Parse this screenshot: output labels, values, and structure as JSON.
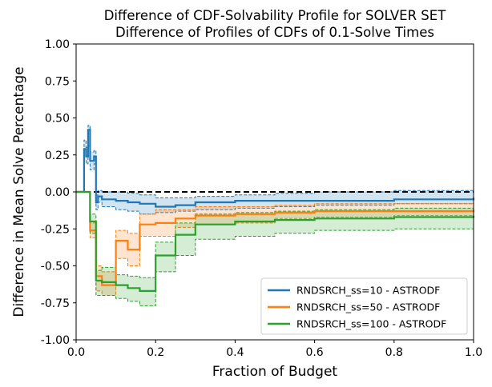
{
  "chart_data": {
    "type": "line",
    "title": "Difference of CDF-Solvability Profile for SOLVER SET",
    "subtitle": "Difference of Profiles of CDFs of 0.1-Solve Times",
    "xlabel": "Fraction of Budget",
    "ylabel": "Difference in Mean Solve Percentage",
    "xlim": [
      0,
      1
    ],
    "ylim": [
      -1,
      1
    ],
    "xticks": [
      "0.0",
      "0.2",
      "0.4",
      "0.6",
      "0.8",
      "1.0"
    ],
    "yticks": [
      "-1.00",
      "-0.75",
      "-0.50",
      "-0.25",
      "0.00",
      "0.25",
      "0.50",
      "0.75",
      "1.00"
    ],
    "reference_line": 0,
    "grid": false,
    "legend_position": "lower-right",
    "series": [
      {
        "name": "RNDSRCH_ss=10 - ASTRODF",
        "color": "#1f77b4",
        "x": [
          0,
          0.02,
          0.025,
          0.03,
          0.035,
          0.045,
          0.05,
          0.055,
          0.065,
          0.1,
          0.13,
          0.16,
          0.2,
          0.25,
          0.3,
          0.4,
          0.5,
          0.6,
          0.8,
          1.0
        ],
        "y": [
          0,
          0.29,
          0.24,
          0.42,
          0.21,
          0.24,
          -0.07,
          -0.03,
          -0.05,
          -0.06,
          -0.07,
          -0.08,
          -0.1,
          -0.09,
          -0.07,
          -0.06,
          -0.06,
          -0.06,
          -0.05,
          -0.04
        ],
        "lower": [
          0,
          0.22,
          0.19,
          0.31,
          0.15,
          0.19,
          -0.12,
          -0.07,
          -0.1,
          -0.12,
          -0.13,
          -0.15,
          -0.14,
          -0.13,
          -0.12,
          -0.11,
          -0.1,
          -0.09,
          -0.08,
          -0.07
        ],
        "upper": [
          0,
          0.35,
          0.3,
          0.45,
          0.27,
          0.28,
          -0.02,
          0.01,
          0.0,
          0.0,
          -0.01,
          -0.02,
          -0.04,
          -0.04,
          -0.03,
          -0.02,
          -0.01,
          0.0,
          0.01,
          0.01
        ]
      },
      {
        "name": "RNDSRCH_ss=50 - ASTRODF",
        "color": "#ff7f0e",
        "x": [
          0,
          0.035,
          0.05,
          0.065,
          0.1,
          0.13,
          0.16,
          0.2,
          0.25,
          0.3,
          0.4,
          0.5,
          0.6,
          0.8,
          1.0
        ],
        "y": [
          0,
          -0.26,
          -0.57,
          -0.63,
          -0.33,
          -0.39,
          -0.22,
          -0.21,
          -0.18,
          -0.16,
          -0.15,
          -0.14,
          -0.13,
          -0.13,
          -0.12
        ],
        "lower": [
          0,
          -0.31,
          -0.67,
          -0.7,
          -0.45,
          -0.5,
          -0.3,
          -0.3,
          -0.24,
          -0.22,
          -0.21,
          -0.18,
          -0.17,
          -0.16,
          -0.15
        ],
        "upper": [
          0,
          -0.21,
          -0.5,
          -0.54,
          -0.26,
          -0.28,
          -0.15,
          -0.12,
          -0.12,
          -0.1,
          -0.1,
          -0.09,
          -0.08,
          -0.08,
          -0.07
        ]
      },
      {
        "name": "RNDSRCH_ss=100 - ASTRODF",
        "color": "#2ca02c",
        "x": [
          0,
          0.035,
          0.05,
          0.065,
          0.1,
          0.13,
          0.16,
          0.2,
          0.25,
          0.3,
          0.4,
          0.5,
          0.6,
          0.8,
          1.0
        ],
        "y": [
          0,
          -0.2,
          -0.6,
          -0.61,
          -0.63,
          -0.65,
          -0.67,
          -0.43,
          -0.29,
          -0.22,
          -0.2,
          -0.19,
          -0.18,
          -0.17,
          -0.16
        ],
        "lower": [
          0,
          -0.28,
          -0.7,
          -0.7,
          -0.72,
          -0.74,
          -0.77,
          -0.54,
          -0.43,
          -0.32,
          -0.3,
          -0.28,
          -0.26,
          -0.25,
          -0.24
        ],
        "upper": [
          0,
          -0.15,
          -0.53,
          -0.51,
          -0.56,
          -0.57,
          -0.58,
          -0.34,
          -0.21,
          -0.15,
          -0.14,
          -0.13,
          -0.12,
          -0.11,
          -0.1
        ]
      }
    ]
  }
}
